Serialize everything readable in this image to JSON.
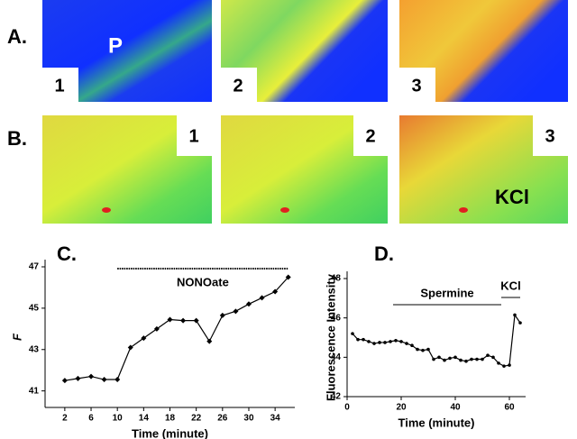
{
  "panels": {
    "A": {
      "label": "A.",
      "images": [
        {
          "number": "1",
          "text": "P"
        },
        {
          "number": "2"
        },
        {
          "number": "3"
        }
      ]
    },
    "B": {
      "label": "B.",
      "images": [
        {
          "number": "1"
        },
        {
          "number": "2"
        },
        {
          "number": "3",
          "text": "KCl"
        }
      ]
    }
  },
  "chart_data": [
    {
      "type": "line",
      "panel_label": "C.",
      "ylabel": "F",
      "xlabel": "Time (minute)",
      "x": [
        2,
        4,
        6,
        8,
        10,
        12,
        14,
        16,
        18,
        20,
        22,
        24,
        26,
        28,
        30,
        32,
        34,
        36
      ],
      "series": [
        {
          "color": "#000000",
          "values": [
            41.5,
            41.6,
            41.7,
            41.55,
            41.55,
            43.1,
            43.55,
            44.0,
            44.45,
            44.4,
            44.4,
            43.4,
            44.65,
            44.85,
            45.2,
            45.5,
            45.8,
            46.5
          ]
        }
      ],
      "xlim": [
        -1,
        37
      ],
      "ylim": [
        40.2,
        47
      ],
      "xticks": [
        2,
        6,
        10,
        14,
        18,
        22,
        26,
        30,
        34
      ],
      "yticks": [
        41,
        43,
        45,
        47
      ],
      "annotations": [
        {
          "text": "NONOate",
          "x": [
            10,
            36
          ]
        }
      ]
    },
    {
      "type": "line",
      "panel_label": "D.",
      "ylabel": "Fluorescence Intensity",
      "xlabel": "Time (minute)",
      "x": [
        2,
        4,
        6,
        8,
        10,
        12,
        14,
        16,
        18,
        20,
        22,
        24,
        26,
        28,
        30,
        32,
        34,
        36,
        38,
        40,
        42,
        44,
        46,
        48,
        50,
        52,
        54,
        56,
        58,
        60,
        62,
        64
      ],
      "series": [
        {
          "color": "#000000",
          "values": [
            45.2,
            44.9,
            44.9,
            44.8,
            44.7,
            44.75,
            44.75,
            44.8,
            44.85,
            44.8,
            44.7,
            44.6,
            44.4,
            44.35,
            44.4,
            43.9,
            44.0,
            43.85,
            43.95,
            44.0,
            43.85,
            43.8,
            43.9,
            43.9,
            43.9,
            44.1,
            44.0,
            43.7,
            43.55,
            43.6,
            46.15,
            45.75
          ]
        }
      ],
      "xlim": [
        0,
        66
      ],
      "ylim": [
        42,
        48
      ],
      "xticks": [
        0,
        20,
        40,
        60
      ],
      "yticks": [
        42,
        44,
        46,
        48
      ],
      "annotations": [
        {
          "text": "Spermine",
          "x": [
            17,
            57
          ]
        },
        {
          "text": "KCl",
          "x": [
            57,
            64
          ]
        }
      ]
    }
  ]
}
